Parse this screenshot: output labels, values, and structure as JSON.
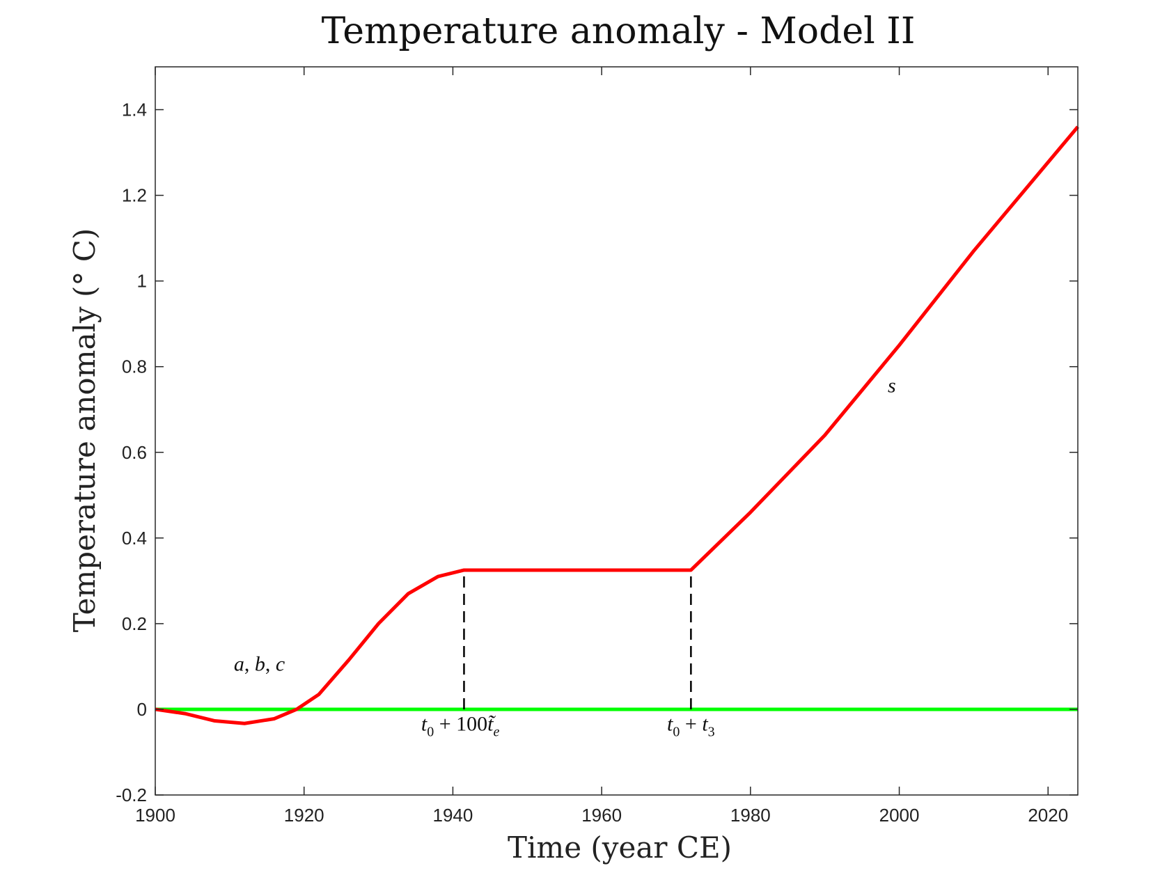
{
  "chart_data": {
    "type": "line",
    "title": "Temperature anomaly - Model II",
    "xlabel": "Time (year CE)",
    "ylabel": "Temperature anomaly (° C)",
    "xlim": [
      1900,
      2024
    ],
    "ylim": [
      -0.2,
      1.5
    ],
    "xticks": [
      1900,
      1920,
      1940,
      1960,
      1980,
      2000,
      2020
    ],
    "yticks": [
      -0.2,
      0,
      0.2,
      0.4,
      0.6,
      0.8,
      1,
      1.2,
      1.4
    ],
    "ytick_labels": [
      "-0.2",
      "0",
      "0.2",
      "0.4",
      "0.6",
      "0.8",
      "1",
      "1.2",
      "1.4"
    ],
    "grid": false,
    "series": [
      {
        "color": "#ff0000",
        "x": [
          1900,
          1904,
          1908,
          1912,
          1916,
          1919,
          1922,
          1926,
          1930,
          1934,
          1938,
          1941.5,
          1972,
          1980,
          1990,
          2000,
          2010,
          2024
        ],
        "y": [
          0,
          -0.01,
          -0.027,
          -0.033,
          -0.022,
          0,
          0.035,
          0.115,
          0.2,
          0.27,
          0.31,
          0.325,
          0.325,
          0.46,
          0.64,
          0.85,
          1.07,
          1.36
        ]
      },
      {
        "color": "#00ff00",
        "x": [
          1900,
          2024
        ],
        "y": [
          0,
          0
        ]
      }
    ],
    "vlines": [
      {
        "x": 1941.5,
        "y0": 0,
        "y1": 0.325,
        "color": "#000000",
        "style": "dashed"
      },
      {
        "x": 1972,
        "y0": 0,
        "y1": 0.325,
        "color": "#000000",
        "style": "dashed"
      }
    ],
    "annotations": [
      {
        "id": "abc",
        "text": "a, b, c",
        "x": 1914,
        "y": 0.09
      },
      {
        "id": "te",
        "text": "t0 + 100t̃e",
        "x": 1941,
        "y": -0.05
      },
      {
        "id": "t3",
        "text": "t0 + t3",
        "x": 1972,
        "y": -0.05
      },
      {
        "id": "s",
        "text": "s",
        "x": 1999,
        "y": 0.74
      }
    ]
  }
}
